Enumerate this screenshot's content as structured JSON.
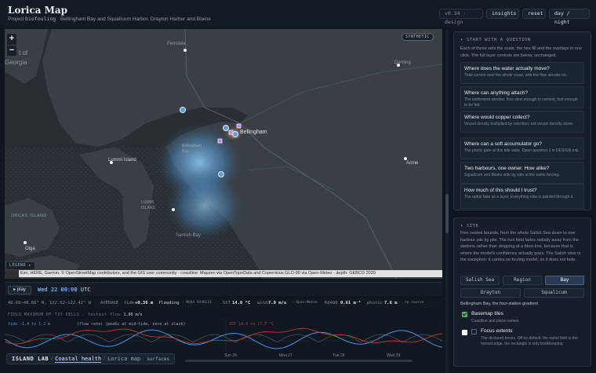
{
  "header": {
    "title": "Lorica Map",
    "project_prefix": "Project",
    "project_name": "biofouling",
    "project_rest": "· Bellingham Bay and Squalicum Harbor, Drayton Harbor and Blaine",
    "version": "v0.34 · design",
    "buttons": {
      "insights": "insights",
      "reset": "reset",
      "daynight": "day / night"
    }
  },
  "map": {
    "zoom_in": "+",
    "zoom_out": "−",
    "synthetic_badge": "SYNTHETIC",
    "labels": {
      "ferndale": "Ferndale",
      "deming": "Deming",
      "bellingham": "Bellingham",
      "lummi_island": "Lummi Island",
      "lummi_island2": "LUMMI\nISLAND",
      "orcas_island": "ORCAS ISLAND",
      "samish_bay": "Samish Bay",
      "acme": "Acme",
      "olga": "Olga",
      "georgia": "Georgia",
      "strait_of": "t of",
      "bellingham_bay": "Bellingham\nBay"
    },
    "legend_button": "LEGEND ▸",
    "attribution": "Esri, HERE, Garmin, © OpenStreetMap contributors, and the GIS user community · coastline: Mapzen via OpenTopoData and Copernicus GLO-90 via Open-Meteo · depth: GEBCO 2020"
  },
  "status": {
    "play": "▸ play",
    "time": "Wed 22 00:00",
    "timezone": "UTC"
  },
  "readout": {
    "coords": "48.66–48.86° N, 122.62–122.42° W",
    "average": "AVERAGE",
    "tide_label": "tide",
    "tide_value": "+0.36 m",
    "tide_state": "flooding",
    "station": "· NOAA 9449211",
    "sst_label": "SST",
    "sst_value": "14.8 °C",
    "wind_label": "wind",
    "wind_value": "7.9 m/s",
    "wind_source": "· Open-Meteo",
    "kd_label": "Kd490",
    "kd_value": "0.61 m⁻¹",
    "photic_label": "photic",
    "photic_value": "7.6 m",
    "no_source": "no source"
  },
  "field": {
    "header": "FIELD MAXIMUM OF 737 CELLS",
    "fastest_label": "· fastest flow",
    "fastest_value": "1.00 m/s",
    "tide_range": "tide -1.4 to 1.2 m",
    "flow_note": "(flow rate) (peaks at mid-tide, zero at slack)",
    "sst_range": "SST 14.4 to 17.7 °C",
    "day_labels": [
      "Sun 26",
      "Mon 27",
      "Tue 28",
      "Wed 29"
    ]
  },
  "tabs": {
    "brand": "ISLAND LAB",
    "coastal": "Coastal health",
    "lorica": "Lorica map",
    "surfaces": "surfaces"
  },
  "panel_question": {
    "header": "▾ START WITH A QUESTION",
    "intro": "Each of these sets the scale, the hex fill and the overlays in one click. The full layer controls are below, unchanged.",
    "questions": [
      {
        "title": "Where does the water actually move?",
        "sub": "Tidal current over the whole coast, with the flow streaks on."
      },
      {
        "title": "Where can anything attach?",
        "sub": "The settlement window: flow slow enough to cement, fast enough to be fed."
      },
      {
        "title": "Where would copper collect?",
        "sub": "Vessel density multiplied by retention, not vessel density alone."
      },
      {
        "title": "Where can a soft accumulator go?",
        "sub": "The photic gate at this tide state. Open question 1 in DESIGN.md."
      },
      {
        "title": "Two harbours, one owner. How alike?",
        "sub": "Squalicum and Blaine side by side at the same forcing."
      },
      {
        "title": "How much of this should I trust?",
        "sub": "The radial fade as a layer. Everything else is painted through it."
      }
    ]
  },
  "panel_site": {
    "header": "▾ SITE",
    "intro": "Five nested bounds, from the whole Salish Sea down to one harbour pile by pile. The hex field fades radially away from the stations rather than stopping at a bbox line, because that is where the model's confidence actually goes. The Salish view is the exception: it carries no fouling model, so it does not fade.",
    "segments": [
      "Salish Sea",
      "Region",
      "Bay",
      "Drayton",
      "Squalicum"
    ],
    "active_segment": "Bay",
    "caption": "Bellingham Bay, the four-station gradient",
    "options": [
      {
        "title": "Basemap tiles",
        "sub": "Coastline and place names",
        "checked": true
      },
      {
        "title": "Focus extents",
        "sub": "The declared boxes. Off by default: the radial field is the honest edge, the rectangle is only bookkeeping",
        "checked": false
      }
    ]
  },
  "colors": {
    "accent_blue": "#6ea8ff",
    "check_green": "#3fb950",
    "tide_line": "#4a90e2",
    "sst_line": "#c0392b",
    "flow_line": "#7a8694"
  }
}
